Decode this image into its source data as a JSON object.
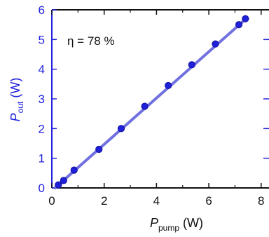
{
  "chart_data": {
    "type": "scatter",
    "x": [
      0.25,
      0.45,
      0.85,
      1.8,
      2.65,
      3.55,
      4.45,
      5.35,
      6.25,
      7.15,
      7.4
    ],
    "y": [
      0.1,
      0.25,
      0.6,
      1.3,
      2.0,
      2.75,
      3.45,
      4.15,
      4.85,
      5.5,
      5.7
    ],
    "fit_line": {
      "x": [
        0.12,
        7.45
      ],
      "y": [
        0.0,
        5.72
      ]
    },
    "xlim": [
      0,
      8.3
    ],
    "ylim": [
      0,
      6
    ],
    "x_ticks": [
      "0",
      "2",
      "4",
      "6",
      "8"
    ],
    "y_ticks": [
      "0",
      "1",
      "2",
      "3",
      "4",
      "5",
      "6"
    ],
    "xlabel": {
      "main": "P",
      "sub": "pump",
      "unit": " (W)"
    },
    "ylabel": {
      "main": "P",
      "sub": "out",
      "unit": " (W)"
    },
    "annotation": "η = 78 %",
    "grid": false,
    "colors": {
      "points": "#2020d8",
      "fit": "#7070e0",
      "y_axis": "#2222dd",
      "axes": "#111111"
    }
  }
}
